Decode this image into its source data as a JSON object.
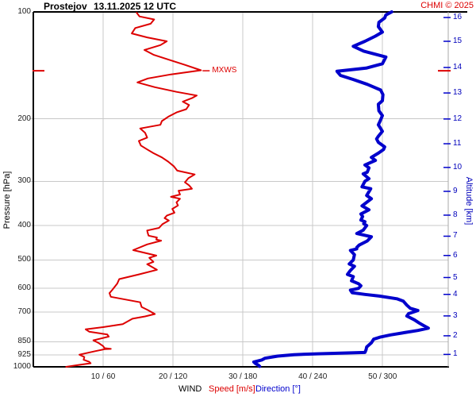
{
  "header": {
    "station": "Prostejov",
    "datetime": "13.11.2025 12 UTC",
    "copyright": "CHMI © 2025"
  },
  "colors": {
    "speed": "#dd0000",
    "direction": "#0000cc",
    "direction_text": "#0000bb",
    "grid": "#c8c8c8",
    "frame": "#000000",
    "right_border": "#aaaaaa"
  },
  "axes": {
    "y_left": {
      "label": "Pressure [hPa]",
      "ticks": [
        {
          "value": 100,
          "label": "100",
          "grid": false
        },
        {
          "value": 200,
          "label": "200",
          "grid": true
        },
        {
          "value": 300,
          "label": "300",
          "grid": true
        },
        {
          "value": 400,
          "label": "400",
          "grid": true
        },
        {
          "value": 500,
          "label": "500",
          "grid": true
        },
        {
          "value": 600,
          "label": "600",
          "grid": true
        },
        {
          "value": 700,
          "label": "700",
          "grid": true
        },
        {
          "value": 850,
          "label": "850",
          "grid": true
        },
        {
          "value": 925,
          "label": "925",
          "grid": true
        },
        {
          "value": 1000,
          "label": "1000",
          "grid": false
        }
      ]
    },
    "y_right": {
      "label": "Altitude [km]",
      "ticks": [
        {
          "km": 16,
          "p": 103.7
        },
        {
          "km": 15,
          "p": 121.0
        },
        {
          "km": 14,
          "p": 143.4
        },
        {
          "km": 13,
          "p": 169.2
        },
        {
          "km": 12,
          "p": 200.3
        },
        {
          "km": 11,
          "p": 235.2
        },
        {
          "km": 10,
          "p": 274.3
        },
        {
          "km": 9,
          "p": 320.3
        },
        {
          "km": 8,
          "p": 373.8
        },
        {
          "km": 7,
          "p": 428.5
        },
        {
          "km": 6,
          "p": 485.6
        },
        {
          "km": 5,
          "p": 560.2
        },
        {
          "km": 4,
          "p": 625.0
        },
        {
          "km": 3,
          "p": 718.7
        },
        {
          "km": 2,
          "p": 817.6
        },
        {
          "km": 1,
          "p": 922.6
        }
      ]
    },
    "x": {
      "label_wind": "WIND",
      "label_speed": "Speed [m/s]",
      "label_direction": "Direction [°]",
      "ticks": [
        {
          "speed": 10,
          "label": "10 / 60"
        },
        {
          "speed": 20,
          "label": "20 / 120"
        },
        {
          "speed": 30,
          "label": "30 / 180"
        },
        {
          "speed": 40,
          "label": "40 / 240"
        },
        {
          "speed": 50,
          "label": "50 / 300"
        }
      ]
    }
  },
  "annotations": {
    "mxws": {
      "label": "MXWS",
      "pressure": 146.5,
      "speed": 24.0
    }
  },
  "chart_data": {
    "type": "line",
    "title": "Prostejov 13.11.2025 12 UTC vertical wind profile",
    "xlabel": "WIND  Speed [m/s]  Direction [°]",
    "ylabel": "Pressure [hPa]",
    "y_scale": "log",
    "ylim": [
      100,
      1000
    ],
    "x_speed_lim": [
      0,
      59.4
    ],
    "x_direction_lim": [
      0,
      356.6
    ],
    "grid": true,
    "series": [
      {
        "name": "Speed [m/s]",
        "x_axis": "speed",
        "color": "#dd0000",
        "width": 2,
        "points": [
          [
            100.5,
            14.8
          ],
          [
            103,
            15.2
          ],
          [
            105,
            17.3
          ],
          [
            108,
            16.8
          ],
          [
            111,
            14.6
          ],
          [
            115,
            14.1
          ],
          [
            118,
            16.3
          ],
          [
            121,
            19.1
          ],
          [
            124,
            18.2
          ],
          [
            128,
            15.9
          ],
          [
            132,
            17.2
          ],
          [
            137,
            19.7
          ],
          [
            141,
            21.7
          ],
          [
            146,
            24.0
          ],
          [
            150,
            19.7
          ],
          [
            154,
            16.4
          ],
          [
            158,
            14.9
          ],
          [
            163,
            17.4
          ],
          [
            168,
            20.5
          ],
          [
            172,
            23.4
          ],
          [
            175,
            22.7
          ],
          [
            179,
            21.4
          ],
          [
            183,
            22.3
          ],
          [
            188,
            21.9
          ],
          [
            192,
            20.5
          ],
          [
            197,
            19.4
          ],
          [
            203,
            18.4
          ],
          [
            208,
            18.2
          ],
          [
            213,
            15.3
          ],
          [
            219,
            16.0
          ],
          [
            226,
            16.3
          ],
          [
            231,
            15.1
          ],
          [
            238,
            15.4
          ],
          [
            244,
            16.3
          ],
          [
            250,
            17.2
          ],
          [
            257,
            18.4
          ],
          [
            264,
            19.3
          ],
          [
            272,
            20.1
          ],
          [
            280,
            20.6
          ],
          [
            287,
            23.1
          ],
          [
            294,
            22.2
          ],
          [
            302,
            21.7
          ],
          [
            308,
            22.3
          ],
          [
            315,
            22.7
          ],
          [
            319,
            20.8
          ],
          [
            327,
            21.0
          ],
          [
            332,
            19.7
          ],
          [
            336,
            21.0
          ],
          [
            344,
            20.5
          ],
          [
            351,
            20.7
          ],
          [
            359,
            19.9
          ],
          [
            368,
            20.2
          ],
          [
            375,
            19.1
          ],
          [
            381,
            18.8
          ],
          [
            387,
            19.4
          ],
          [
            396,
            18.5
          ],
          [
            406,
            18.0
          ],
          [
            413,
            16.3
          ],
          [
            421,
            16.4
          ],
          [
            427,
            16.5
          ],
          [
            432,
            17.7
          ],
          [
            438,
            17.6
          ],
          [
            441,
            18.3
          ],
          [
            452,
            16.3
          ],
          [
            469,
            14.3
          ],
          [
            486,
            17.6
          ],
          [
            493,
            16.6
          ],
          [
            506,
            17.2
          ],
          [
            514,
            16.3
          ],
          [
            533,
            17.7
          ],
          [
            549,
            15.1
          ],
          [
            566,
            12.3
          ],
          [
            583,
            12.0
          ],
          [
            607,
            11.3
          ],
          [
            620,
            10.9
          ],
          [
            635,
            11.1
          ],
          [
            658,
            15.3
          ],
          [
            678,
            15.5
          ],
          [
            692,
            16.4
          ],
          [
            710,
            17.4
          ],
          [
            721,
            16.0
          ],
          [
            732,
            14.2
          ],
          [
            758,
            12.8
          ],
          [
            773,
            10.0
          ],
          [
            784,
            7.5
          ],
          [
            796,
            8.0
          ],
          [
            811,
            10.6
          ],
          [
            822,
            10.8
          ],
          [
            842,
            8.6
          ],
          [
            858,
            9.4
          ],
          [
            874,
            10.0
          ],
          [
            886,
            10.2
          ],
          [
            890,
            11.1
          ],
          [
            892,
            10.2
          ],
          [
            903,
            8.9
          ],
          [
            924,
            6.6
          ],
          [
            938,
            7.3
          ],
          [
            955,
            7.2
          ],
          [
            968,
            8.0
          ],
          [
            977,
            8.2
          ],
          [
            988,
            6.4
          ],
          [
            1000,
            4.7
          ]
        ]
      },
      {
        "name": "Direction [°]",
        "x_axis": "direction",
        "color": "#0000cc",
        "width": 4,
        "points": [
          [
            100,
            308
          ],
          [
            102,
            303
          ],
          [
            104,
            302
          ],
          [
            107,
            297
          ],
          [
            110,
            296.5
          ],
          [
            114,
            300
          ],
          [
            117,
            294
          ],
          [
            121,
            285
          ],
          [
            125,
            275
          ],
          [
            129,
            284
          ],
          [
            134,
            303
          ],
          [
            140,
            300
          ],
          [
            144,
            286
          ],
          [
            147,
            261
          ],
          [
            151,
            264
          ],
          [
            155,
            275
          ],
          [
            160,
            287
          ],
          [
            166,
            298.5
          ],
          [
            171,
            300.5
          ],
          [
            178,
            300
          ],
          [
            182,
            296.5
          ],
          [
            190,
            297
          ],
          [
            196,
            300
          ],
          [
            203,
            298
          ],
          [
            208,
            296.5
          ],
          [
            213,
            298.5
          ],
          [
            217,
            300
          ],
          [
            224,
            296.5
          ],
          [
            228,
            295
          ],
          [
            233,
            296.5
          ],
          [
            240,
            302
          ],
          [
            244,
            301
          ],
          [
            250,
            296.5
          ],
          [
            257,
            290.5
          ],
          [
            262,
            294
          ],
          [
            270,
            285
          ],
          [
            275,
            288.5
          ],
          [
            283,
            287
          ],
          [
            286,
            283.5
          ],
          [
            295,
            288.5
          ],
          [
            300,
            285
          ],
          [
            311,
            282.5
          ],
          [
            315,
            290
          ],
          [
            329,
            286.5
          ],
          [
            336,
            290.5
          ],
          [
            352,
            282.5
          ],
          [
            361,
            288.5
          ],
          [
            371,
            281.5
          ],
          [
            377,
            283
          ],
          [
            386,
            281.5
          ],
          [
            390,
            285
          ],
          [
            395,
            284
          ],
          [
            400,
            286.5
          ],
          [
            412,
            283.5
          ],
          [
            421,
            278
          ],
          [
            430,
            290.5
          ],
          [
            442,
            287
          ],
          [
            454,
            280
          ],
          [
            461,
            278
          ],
          [
            465,
            278
          ],
          [
            470,
            272.5
          ],
          [
            483,
            276
          ],
          [
            500,
            275
          ],
          [
            513,
            271.5
          ],
          [
            521,
            276
          ],
          [
            535,
            272.5
          ],
          [
            549,
            270
          ],
          [
            557,
            275
          ],
          [
            572,
            273.5
          ],
          [
            583,
            279.5
          ],
          [
            591,
            281.5
          ],
          [
            601,
            279.5
          ],
          [
            608,
            272.5
          ],
          [
            618,
            274
          ],
          [
            625,
            285
          ],
          [
            632,
            297.5
          ],
          [
            643,
            312.5
          ],
          [
            653,
            318
          ],
          [
            670,
            321
          ],
          [
            684,
            324
          ],
          [
            694,
            330.5
          ],
          [
            708,
            322.5
          ],
          [
            719,
            321
          ],
          [
            737,
            327.5
          ],
          [
            752,
            331.5
          ],
          [
            767,
            336
          ],
          [
            778,
            339.5
          ],
          [
            790,
            330.5
          ],
          [
            801,
            319
          ],
          [
            813,
            307
          ],
          [
            824,
            298.5
          ],
          [
            836,
            292.5
          ],
          [
            856,
            290.5
          ],
          [
            879,
            286.5
          ],
          [
            894,
            286
          ],
          [
            911,
            285
          ],
          [
            915,
            264.5
          ],
          [
            919,
            244
          ],
          [
            924,
            224
          ],
          [
            933,
            210
          ],
          [
            946,
            199
          ],
          [
            956,
            196.5
          ],
          [
            969,
            189.5
          ],
          [
            979,
            191
          ],
          [
            990,
            193.5
          ],
          [
            997,
            194.5
          ]
        ]
      }
    ]
  }
}
